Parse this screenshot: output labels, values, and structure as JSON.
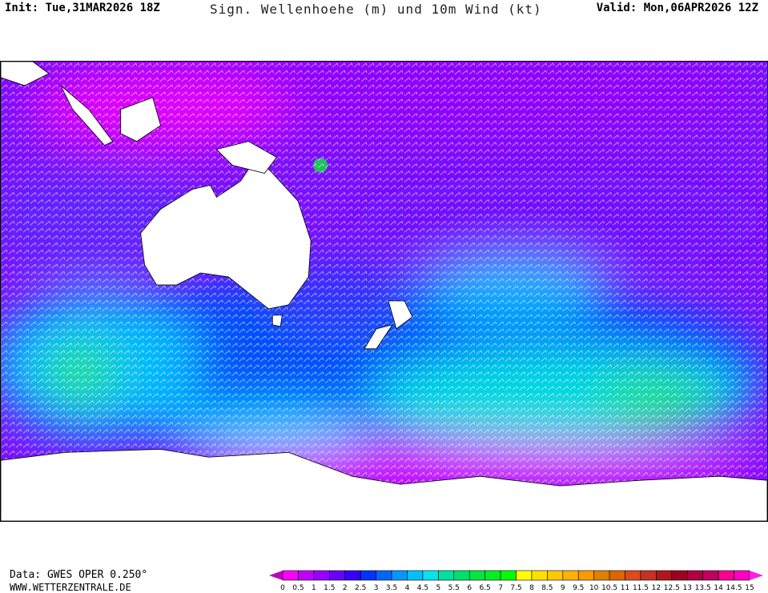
{
  "header": {
    "init": "Init: Tue,31MAR2026 18Z",
    "title": "Sign. Wellenhoehe (m) und 10m Wind (kt)",
    "valid": "Valid: Mon,06APR2026 12Z"
  },
  "footer": {
    "data_source": "Data: GWES OPER 0.250°",
    "website": "WWW.WETTERZENTRALE.DE"
  },
  "legend": {
    "labels": [
      "0",
      "0.5",
      "1",
      "1.5",
      "2",
      "2.5",
      "3",
      "3.5",
      "4",
      "4.5",
      "5",
      "5.5",
      "6",
      "6.5",
      "7",
      "7.5",
      "8",
      "8.5",
      "9",
      "9.5",
      "10",
      "10.5",
      "11",
      "11.5",
      "12",
      "12.5",
      "13",
      "13.5",
      "14",
      "14.5",
      "15"
    ],
    "colors": [
      "#ff00ff",
      "#c000ff",
      "#9900ff",
      "#6600ff",
      "#3300ff",
      "#0033ff",
      "#0066ff",
      "#0099ff",
      "#00c0ff",
      "#00e5ee",
      "#00e0a0",
      "#00e070",
      "#00e840",
      "#00f020",
      "#00ff00",
      "#ffff00",
      "#ffe000",
      "#ffc800",
      "#ffb000",
      "#ff9900",
      "#e08000",
      "#e06400",
      "#e04820",
      "#c83020",
      "#b01818",
      "#a00020",
      "#b00040",
      "#c00060",
      "#ff0090",
      "#ff00c0"
    ],
    "under_color": "#c000c0",
    "over_color": "#ff20e0"
  },
  "map": {
    "land_color": "#ffffff",
    "barb_color": "#ffffff"
  }
}
